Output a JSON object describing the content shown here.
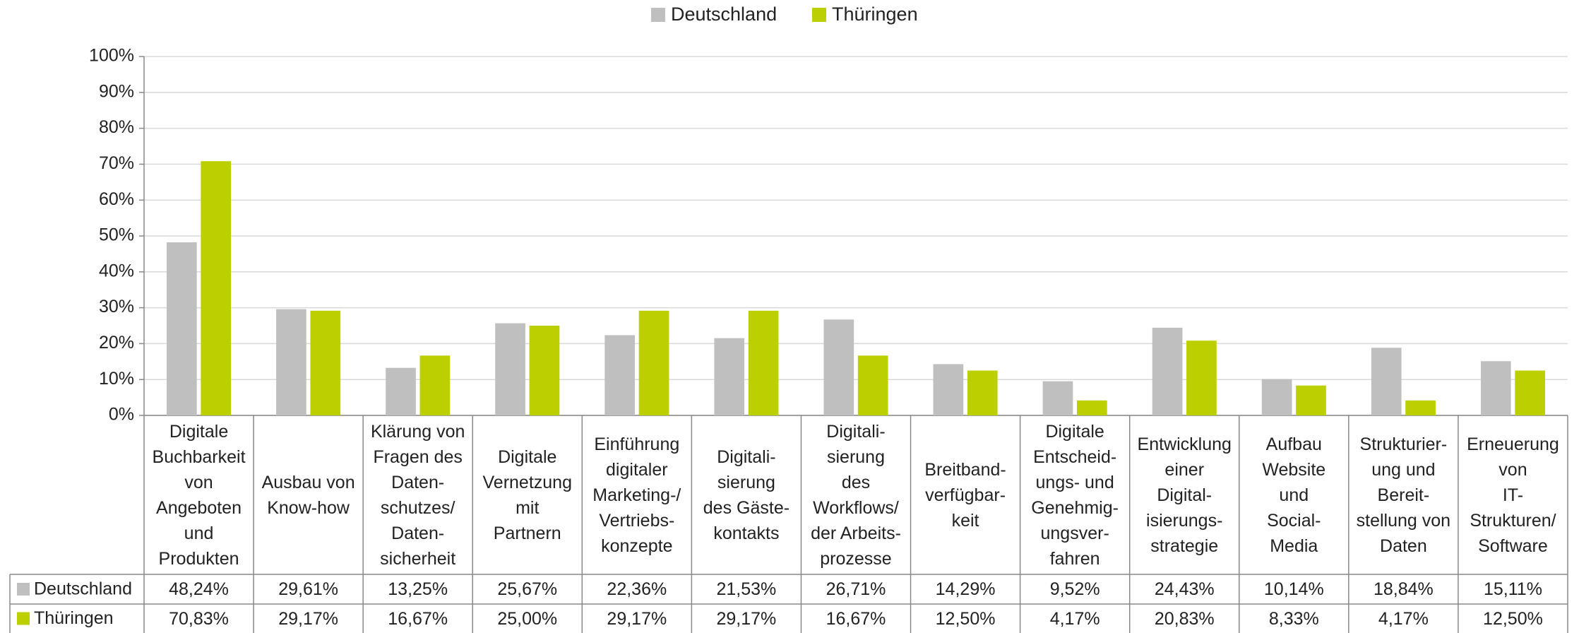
{
  "chart_data": {
    "type": "bar",
    "categories": [
      "Digitale\nBuchbarkeit\nvon\nAngeboten\nund\nProdukten",
      "Ausbau von\nKnow-how",
      "Klärung von\nFragen des\nDaten-\nschutzes/\nDaten-\nsicherheit",
      "Digitale\nVernetzung\nmit\nPartnern",
      "Einführung\ndigitaler\nMarketing-/\nVertriebs-\nkonzepte",
      "Digitali-\nsierung\ndes Gäste-\nkontakts",
      "Digitali-\nsierung\ndes\nWorkflows/\nder Arbeits-\nprozesse",
      "Breitband-\nverfügbar-\nkeit",
      "Digitale\nEntscheid-\nungs- und\nGenehmig-\nungsver-\nfahren",
      "Entwicklung\neiner\nDigital-\nisierungs-\nstrategie",
      "Aufbau\nWebsite\nund\nSocial-\nMedia",
      "Strukturier-\nung und\nBereit-\nstellung von\nDaten",
      "Erneuerung\nvon\nIT-\nStrukturen/\nSoftware"
    ],
    "series": [
      {
        "name": "Deutschland",
        "color": "#bfbfbf",
        "values": [
          48.24,
          29.61,
          13.25,
          25.67,
          22.36,
          21.53,
          26.71,
          14.29,
          9.52,
          24.43,
          10.14,
          18.84,
          15.11
        ],
        "value_labels": [
          "48,24%",
          "29,61%",
          "13,25%",
          "25,67%",
          "22,36%",
          "21,53%",
          "26,71%",
          "14,29%",
          "9,52%",
          "24,43%",
          "10,14%",
          "18,84%",
          "15,11%"
        ]
      },
      {
        "name": "Thüringen",
        "color": "#bccf00",
        "values": [
          70.83,
          29.17,
          16.67,
          25.0,
          29.17,
          29.17,
          16.67,
          12.5,
          4.17,
          20.83,
          8.33,
          4.17,
          12.5
        ],
        "value_labels": [
          "70,83%",
          "29,17%",
          "16,67%",
          "25,00%",
          "29,17%",
          "29,17%",
          "16,67%",
          "12,50%",
          "4,17%",
          "20,83%",
          "8,33%",
          "4,17%",
          "12,50%"
        ]
      }
    ],
    "ylim": [
      0,
      100
    ],
    "yticks": [
      {
        "value": 0,
        "label": "0%"
      },
      {
        "value": 10,
        "label": "10%"
      },
      {
        "value": 20,
        "label": "20%"
      },
      {
        "value": 30,
        "label": "30%"
      },
      {
        "value": 40,
        "label": "40%"
      },
      {
        "value": 50,
        "label": "50%"
      },
      {
        "value": 60,
        "label": "60%"
      },
      {
        "value": 70,
        "label": "70%"
      },
      {
        "value": 80,
        "label": "80%"
      },
      {
        "value": 90,
        "label": "90%"
      },
      {
        "value": 100,
        "label": "100%"
      }
    ],
    "grid": true,
    "legend": "top"
  }
}
